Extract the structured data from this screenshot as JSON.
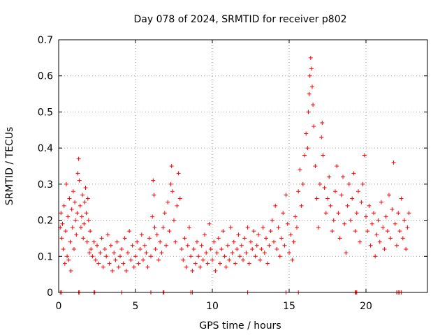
{
  "chart_data": {
    "type": "scatter",
    "title": "Day 078 of 2024, SRMTID for receiver p802",
    "xlabel": "GPS time / hours",
    "ylabel": "SRMTID / TECUs",
    "xlim": [
      0,
      24
    ],
    "ylim": [
      0,
      0.7
    ],
    "x_ticks": [
      0,
      5,
      10,
      15,
      20
    ],
    "y_ticks": [
      0,
      0.1,
      0.2,
      0.3,
      0.4,
      0.5,
      0.6,
      0.7
    ],
    "y_tick_labels": [
      "0",
      "0.1",
      "0.2",
      "0.3",
      "0.4",
      "0.5",
      "0.6",
      "0.7"
    ],
    "grid": true,
    "marker": "plus",
    "color": "#ff0000",
    "series": [
      {
        "name": "SRMTID",
        "points": [
          [
            0.1,
            0.18
          ],
          [
            0.15,
            0.22
          ],
          [
            0.2,
            0.15
          ],
          [
            0.25,
            0.19
          ],
          [
            0.3,
            0.12
          ],
          [
            0.35,
            0.24
          ],
          [
            0.4,
            0.08
          ],
          [
            0.45,
            0.17
          ],
          [
            0.5,
            0.3
          ],
          [
            0.55,
            0.1
          ],
          [
            0.6,
            0.21
          ],
          [
            0.65,
            0.09
          ],
          [
            0.7,
            0.26
          ],
          [
            0.75,
            0.14
          ],
          [
            0.8,
            0.06
          ],
          [
            0.85,
            0.23
          ],
          [
            0.9,
            0.18
          ],
          [
            0.95,
            0.28
          ],
          [
            1.0,
            0.12
          ],
          [
            1.05,
            0.25
          ],
          [
            1.1,
            0.2
          ],
          [
            1.15,
            0.16
          ],
          [
            1.2,
            0.22
          ],
          [
            1.25,
            0.33
          ],
          [
            1.3,
            0.37
          ],
          [
            1.35,
            0.31
          ],
          [
            1.4,
            0.24
          ],
          [
            1.45,
            0.18
          ],
          [
            1.5,
            0.21
          ],
          [
            1.55,
            0.27
          ],
          [
            1.6,
            0.15
          ],
          [
            1.65,
            0.19
          ],
          [
            1.7,
            0.25
          ],
          [
            1.75,
            0.29
          ],
          [
            1.8,
            0.22
          ],
          [
            1.85,
            0.14
          ],
          [
            1.9,
            0.26
          ],
          [
            1.95,
            0.2
          ],
          [
            2.0,
            0.11
          ],
          [
            2.05,
            0.17
          ],
          [
            2.1,
            0.12
          ],
          [
            2.2,
            0.1
          ],
          [
            2.3,
            0.14
          ],
          [
            2.4,
            0.09
          ],
          [
            2.5,
            0.13
          ],
          [
            2.6,
            0.08
          ],
          [
            2.7,
            0.11
          ],
          [
            2.8,
            0.15
          ],
          [
            2.9,
            0.07
          ],
          [
            3.0,
            0.12
          ],
          [
            3.1,
            0.1
          ],
          [
            3.2,
            0.16
          ],
          [
            3.3,
            0.08
          ],
          [
            3.4,
            0.13
          ],
          [
            3.5,
            0.06
          ],
          [
            3.6,
            0.11
          ],
          [
            3.7,
            0.09
          ],
          [
            3.8,
            0.14
          ],
          [
            3.9,
            0.07
          ],
          [
            4.0,
            0.1
          ],
          [
            4.1,
            0.12
          ],
          [
            4.2,
            0.08
          ],
          [
            4.3,
            0.15
          ],
          [
            4.4,
            0.06
          ],
          [
            4.5,
            0.11
          ],
          [
            4.6,
            0.17
          ],
          [
            4.7,
            0.09
          ],
          [
            4.8,
            0.13
          ],
          [
            4.9,
            0.07
          ],
          [
            5.0,
            0.1
          ],
          [
            5.1,
            0.14
          ],
          [
            5.2,
            0.08
          ],
          [
            5.3,
            0.12
          ],
          [
            5.4,
            0.16
          ],
          [
            5.5,
            0.09
          ],
          [
            5.6,
            0.13
          ],
          [
            5.7,
            0.11
          ],
          [
            5.8,
            0.07
          ],
          [
            5.9,
            0.15
          ],
          [
            6.0,
            0.1
          ],
          [
            6.1,
            0.21
          ],
          [
            6.15,
            0.31
          ],
          [
            6.2,
            0.27
          ],
          [
            6.25,
            0.18
          ],
          [
            6.3,
            0.12
          ],
          [
            6.4,
            0.16
          ],
          [
            6.5,
            0.09
          ],
          [
            6.6,
            0.14
          ],
          [
            6.7,
            0.11
          ],
          [
            6.8,
            0.18
          ],
          [
            6.9,
            0.22
          ],
          [
            7.0,
            0.13
          ],
          [
            7.1,
            0.25
          ],
          [
            7.2,
            0.17
          ],
          [
            7.3,
            0.3
          ],
          [
            7.35,
            0.35
          ],
          [
            7.4,
            0.28
          ],
          [
            7.5,
            0.2
          ],
          [
            7.6,
            0.14
          ],
          [
            7.7,
            0.24
          ],
          [
            7.8,
            0.33
          ],
          [
            7.9,
            0.26
          ],
          [
            8.0,
            0.12
          ],
          [
            8.1,
            0.09
          ],
          [
            8.2,
            0.15
          ],
          [
            8.3,
            0.07
          ],
          [
            8.4,
            0.13
          ],
          [
            8.5,
            0.18
          ],
          [
            8.6,
            0.1
          ],
          [
            8.7,
            0.06
          ],
          [
            8.8,
            0.12
          ],
          [
            8.9,
            0.08
          ],
          [
            9.0,
            0.14
          ],
          [
            9.1,
            0.1
          ],
          [
            9.2,
            0.07
          ],
          [
            9.3,
            0.13
          ],
          [
            9.4,
            0.09
          ],
          [
            9.5,
            0.16
          ],
          [
            9.6,
            0.11
          ],
          [
            9.7,
            0.08
          ],
          [
            9.8,
            0.19
          ],
          [
            9.9,
            0.12
          ],
          [
            10.0,
            0.09
          ],
          [
            10.1,
            0.14
          ],
          [
            10.2,
            0.06
          ],
          [
            10.3,
            0.11
          ],
          [
            10.4,
            0.15
          ],
          [
            10.5,
            0.08
          ],
          [
            10.6,
            0.12
          ],
          [
            10.7,
            0.17
          ],
          [
            10.8,
            0.1
          ],
          [
            10.9,
            0.07
          ],
          [
            11.0,
            0.13
          ],
          [
            11.1,
            0.09
          ],
          [
            11.2,
            0.18
          ],
          [
            11.3,
            0.11
          ],
          [
            11.4,
            0.14
          ],
          [
            11.5,
            0.08
          ],
          [
            11.6,
            0.12
          ],
          [
            11.7,
            0.16
          ],
          [
            11.8,
            0.1
          ],
          [
            11.9,
            0.13
          ],
          [
            12.0,
            0.09
          ],
          [
            12.1,
            0.15
          ],
          [
            12.2,
            0.11
          ],
          [
            12.3,
            0.18
          ],
          [
            12.4,
            0.08
          ],
          [
            12.5,
            0.14
          ],
          [
            12.6,
            0.12
          ],
          [
            12.7,
            0.17
          ],
          [
            12.8,
            0.1
          ],
          [
            12.9,
            0.13
          ],
          [
            13.0,
            0.16
          ],
          [
            13.1,
            0.09
          ],
          [
            13.2,
            0.12
          ],
          [
            13.3,
            0.18
          ],
          [
            13.4,
            0.11
          ],
          [
            13.5,
            0.15
          ],
          [
            13.6,
            0.08
          ],
          [
            13.7,
            0.13
          ],
          [
            13.8,
            0.17
          ],
          [
            13.9,
            0.2
          ],
          [
            14.0,
            0.14
          ],
          [
            14.1,
            0.24
          ],
          [
            14.2,
            0.12
          ],
          [
            14.3,
            0.18
          ],
          [
            14.4,
            0.1
          ],
          [
            14.5,
            0.15
          ],
          [
            14.6,
            0.22
          ],
          [
            14.7,
            0.13
          ],
          [
            14.8,
            0.27
          ],
          [
            14.9,
            0.19
          ],
          [
            15.0,
            0.11
          ],
          [
            15.1,
            0.16
          ],
          [
            15.2,
            0.09
          ],
          [
            15.3,
            0.14
          ],
          [
            15.4,
            0.21
          ],
          [
            15.5,
            0.18
          ],
          [
            15.6,
            0.28
          ],
          [
            15.7,
            0.34
          ],
          [
            15.8,
            0.24
          ],
          [
            15.9,
            0.3
          ],
          [
            16.0,
            0.38
          ],
          [
            16.1,
            0.44
          ],
          [
            16.2,
            0.4
          ],
          [
            16.25,
            0.5
          ],
          [
            16.3,
            0.55
          ],
          [
            16.35,
            0.6
          ],
          [
            16.4,
            0.65
          ],
          [
            16.45,
            0.62
          ],
          [
            16.5,
            0.57
          ],
          [
            16.55,
            0.52
          ],
          [
            16.6,
            0.46
          ],
          [
            16.7,
            0.35
          ],
          [
            16.8,
            0.26
          ],
          [
            16.9,
            0.18
          ],
          [
            17.0,
            0.3
          ],
          [
            17.1,
            0.43
          ],
          [
            17.15,
            0.47
          ],
          [
            17.2,
            0.38
          ],
          [
            17.3,
            0.29
          ],
          [
            17.4,
            0.22
          ],
          [
            17.5,
            0.26
          ],
          [
            17.6,
            0.32
          ],
          [
            17.7,
            0.24
          ],
          [
            17.8,
            0.17
          ],
          [
            17.9,
            0.2
          ],
          [
            18.0,
            0.28
          ],
          [
            18.1,
            0.35
          ],
          [
            18.2,
            0.22
          ],
          [
            18.3,
            0.15
          ],
          [
            18.4,
            0.27
          ],
          [
            18.5,
            0.32
          ],
          [
            18.6,
            0.19
          ],
          [
            18.7,
            0.11
          ],
          [
            18.8,
            0.24
          ],
          [
            18.9,
            0.3
          ],
          [
            19.0,
            0.2
          ],
          [
            19.1,
            0.26
          ],
          [
            19.2,
            0.33
          ],
          [
            19.3,
            0.17
          ],
          [
            19.4,
            0.22
          ],
          [
            19.5,
            0.28
          ],
          [
            19.6,
            0.14
          ],
          [
            19.7,
            0.25
          ],
          [
            19.8,
            0.3
          ],
          [
            19.9,
            0.38
          ],
          [
            20.0,
            0.21
          ],
          [
            20.1,
            0.17
          ],
          [
            20.2,
            0.24
          ],
          [
            20.3,
            0.13
          ],
          [
            20.4,
            0.19
          ],
          [
            20.5,
            0.22
          ],
          [
            20.6,
            0.1
          ],
          [
            20.7,
            0.16
          ],
          [
            20.8,
            0.2
          ],
          [
            20.9,
            0.14
          ],
          [
            21.0,
            0.25
          ],
          [
            21.1,
            0.18
          ],
          [
            21.2,
            0.12
          ],
          [
            21.3,
            0.21
          ],
          [
            21.4,
            0.17
          ],
          [
            21.5,
            0.27
          ],
          [
            21.6,
            0.15
          ],
          [
            21.7,
            0.23
          ],
          [
            21.8,
            0.36
          ],
          [
            21.9,
            0.19
          ],
          [
            22.0,
            0.13
          ],
          [
            22.1,
            0.22
          ],
          [
            22.2,
            0.17
          ],
          [
            22.3,
            0.26
          ],
          [
            22.4,
            0.15
          ],
          [
            22.5,
            0.2
          ],
          [
            22.6,
            0.12
          ],
          [
            22.7,
            0.18
          ],
          [
            22.8,
            0.22
          ]
        ]
      }
    ],
    "zero_markers_x": [
      0.1,
      0.2,
      1.3,
      1.35,
      2.3,
      2.35,
      4.1,
      6.0,
      6.8,
      6.85,
      8.6,
      8.7,
      12.3,
      14.8,
      15.6,
      19.3,
      19.35,
      19.4,
      22.0,
      22.1,
      22.2,
      22.3
    ]
  }
}
